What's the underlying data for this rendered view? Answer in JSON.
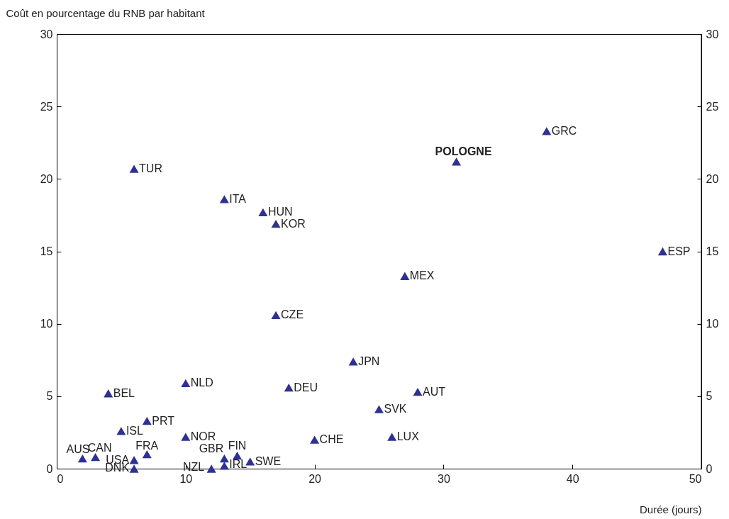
{
  "chart_data": {
    "type": "scatter",
    "xlabel": "Durée (jours)",
    "ylabel": "Coût en pourcentage du RNB par habitant",
    "x": [
      2,
      3,
      6,
      6,
      7,
      5,
      7,
      4,
      10,
      10,
      12,
      13,
      13,
      14,
      15,
      20,
      18,
      17,
      23,
      25,
      26,
      28,
      27,
      17,
      16,
      13,
      6,
      31,
      38,
      47
    ],
    "values": [
      0.7,
      0.8,
      0.6,
      0,
      1.0,
      2.6,
      3.3,
      5.2,
      5.9,
      2.2,
      0,
      0.7,
      0.2,
      0.9,
      0.5,
      2.0,
      5.6,
      10.6,
      7.4,
      4.1,
      2.2,
      5.3,
      13.3,
      16.9,
      17.7,
      18.6,
      20.7,
      21.2,
      23.3,
      15.0
    ],
    "color": "#2e3192",
    "marker": "triangle",
    "annotations": [
      {
        "text": "AUS",
        "x": 2,
        "y": 0.7
      },
      {
        "text": "CAN",
        "x": 3,
        "y": 0.8
      },
      {
        "text": "USA",
        "x": 6,
        "y": 0.6
      },
      {
        "text": "DNK",
        "x": 6,
        "y": 0
      },
      {
        "text": "FRA",
        "x": 7,
        "y": 1.0
      },
      {
        "text": "ISL",
        "x": 5,
        "y": 2.6
      },
      {
        "text": "PRT",
        "x": 7,
        "y": 3.3
      },
      {
        "text": "BEL",
        "x": 4,
        "y": 5.2
      },
      {
        "text": "NLD",
        "x": 10,
        "y": 5.9
      },
      {
        "text": "NOR",
        "x": 10,
        "y": 2.2
      },
      {
        "text": "NZL",
        "x": 12,
        "y": 0
      },
      {
        "text": "GBR",
        "x": 13,
        "y": 0.7
      },
      {
        "text": "IRL",
        "x": 13,
        "y": 0.2
      },
      {
        "text": "FIN",
        "x": 14,
        "y": 0.9
      },
      {
        "text": "SWE",
        "x": 15,
        "y": 0.5
      },
      {
        "text": "CHE",
        "x": 20,
        "y": 2.0
      },
      {
        "text": "DEU",
        "x": 18,
        "y": 5.6
      },
      {
        "text": "CZE",
        "x": 17,
        "y": 10.6
      },
      {
        "text": "JPN",
        "x": 23,
        "y": 7.4
      },
      {
        "text": "SVK",
        "x": 25,
        "y": 4.1
      },
      {
        "text": "LUX",
        "x": 26,
        "y": 2.2
      },
      {
        "text": "AUT",
        "x": 28,
        "y": 5.3
      },
      {
        "text": "MEX",
        "x": 27,
        "y": 13.3
      },
      {
        "text": "KOR",
        "x": 17,
        "y": 16.9
      },
      {
        "text": "HUN",
        "x": 16,
        "y": 17.7
      },
      {
        "text": "ITA",
        "x": 13,
        "y": 18.6
      },
      {
        "text": "TUR",
        "x": 6,
        "y": 20.7
      },
      {
        "text": "POLOGNE",
        "x": 31,
        "y": 21.2
      },
      {
        "text": "GRC",
        "x": 38,
        "y": 23.3
      },
      {
        "text": "ESP",
        "x": 47,
        "y": 15.0
      }
    ],
    "xlim": [
      0,
      50
    ],
    "xticks": [
      0,
      10,
      20,
      30,
      40,
      50
    ],
    "ylim": [
      0,
      30
    ],
    "yticks": [
      0,
      5,
      10,
      15,
      20,
      25,
      30
    ],
    "y2lim": [
      0,
      30
    ],
    "y2ticks": [
      0,
      5,
      10,
      15,
      20,
      25,
      30
    ],
    "grid": false
  }
}
